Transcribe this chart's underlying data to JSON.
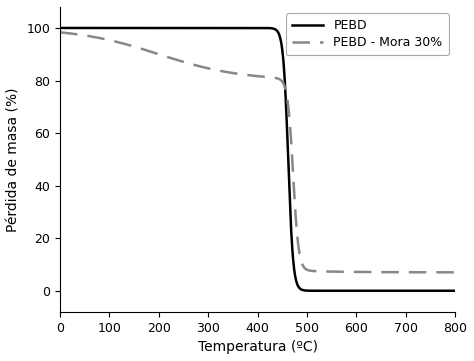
{
  "title": "",
  "xlabel": "Temperatura (ºC)",
  "ylabel": "Pérdida de masa (%)",
  "xlim": [
    0,
    800
  ],
  "ylim": [
    -8,
    108
  ],
  "xticks": [
    0,
    100,
    200,
    300,
    400,
    500,
    600,
    700,
    800
  ],
  "yticks": [
    0,
    20,
    40,
    60,
    80,
    100
  ],
  "pebd_color": "#000000",
  "pebd_mora_color": "#888888",
  "legend_labels": [
    "PEBD",
    "PEBD - Mora 30%"
  ],
  "background_color": "#ffffff",
  "figsize": [
    4.74,
    3.61
  ],
  "dpi": 100
}
